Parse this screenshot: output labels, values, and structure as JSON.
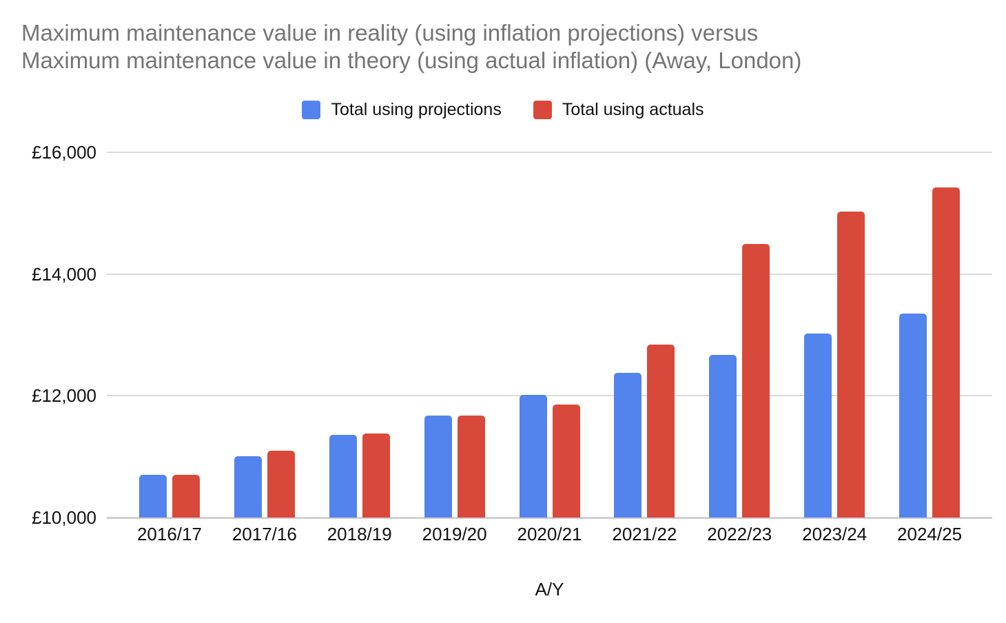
{
  "chart_data": {
    "type": "bar",
    "title": "Maximum maintenance value in reality (using inflation projections) versus Maximum maintenance value in theory (using actual inflation) (Away, London)",
    "title_lines": [
      "Maximum maintenance value in reality (using inflation projections) versus",
      "Maximum maintenance value in theory (using actual inflation) (Away, London)"
    ],
    "xlabel": "A/Y",
    "ylabel": "",
    "ylim": [
      10000,
      16000
    ],
    "grid": true,
    "legend_position": "top",
    "yticks": [
      {
        "value": 16000,
        "label": "£16,000"
      },
      {
        "value": 14000,
        "label": "£14,000"
      },
      {
        "value": 12000,
        "label": "£12,000"
      },
      {
        "value": 10000,
        "label": "£10,000"
      }
    ],
    "categories": [
      "2016/17",
      "2017/16",
      "2018/19",
      "2019/20",
      "2020/21",
      "2021/22",
      "2022/23",
      "2023/24",
      "2024/25"
    ],
    "series": [
      {
        "name": "Total using projections",
        "key": "projections",
        "color": "#5383EC",
        "values": [
          10702,
          11002,
          11354,
          11672,
          12010,
          12382,
          12667,
          13022,
          13348
        ]
      },
      {
        "name": "Total using actuals",
        "key": "actuals",
        "color": "#D9493B",
        "values": [
          10702,
          11100,
          11385,
          11670,
          11855,
          12840,
          14490,
          15030,
          15425
        ]
      }
    ],
    "colors": {
      "title_text": "#757575",
      "axis_text": "#111111",
      "gridline": "#DADADA",
      "baseline": "#CFCFCF",
      "background": "#FFFFFF"
    }
  }
}
